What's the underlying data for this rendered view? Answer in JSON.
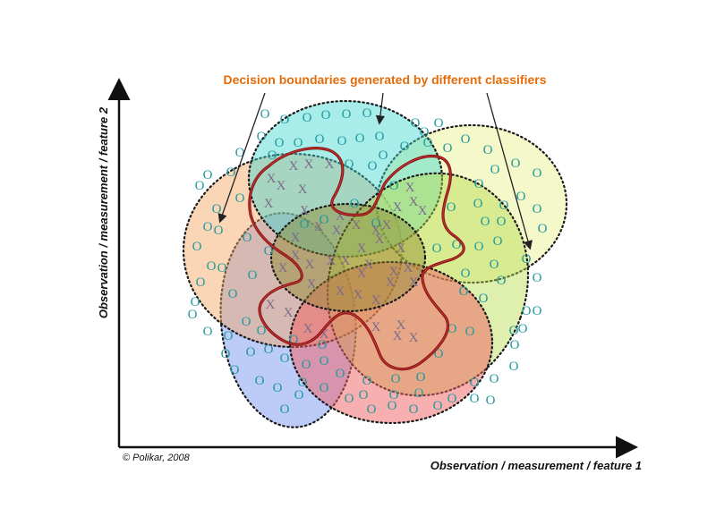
{
  "title": "Decision boundaries generated by different classifiers",
  "x_axis_label": "Observation / measurement / feature 1",
  "y_axis_label": "Observation / measurement / feature 2",
  "credit": "© Polikar, 2008",
  "class_symbols": {
    "outer": "O",
    "inner": "X"
  },
  "colors": {
    "title": "#e36c09",
    "symbol_o": "#1f9aa0",
    "symbol_x": "#7a6a8c",
    "boundary": "#8b1414",
    "ellipse_cyan": "#40d6d0",
    "ellipse_orange": "#f4a460",
    "ellipse_yellow": "#ecf39a",
    "ellipse_green": "#b7dc4c",
    "ellipse_blue": "#6c8cf0",
    "ellipse_red": "#f06060",
    "ellipse_olive": "#8f8a2c"
  }
}
